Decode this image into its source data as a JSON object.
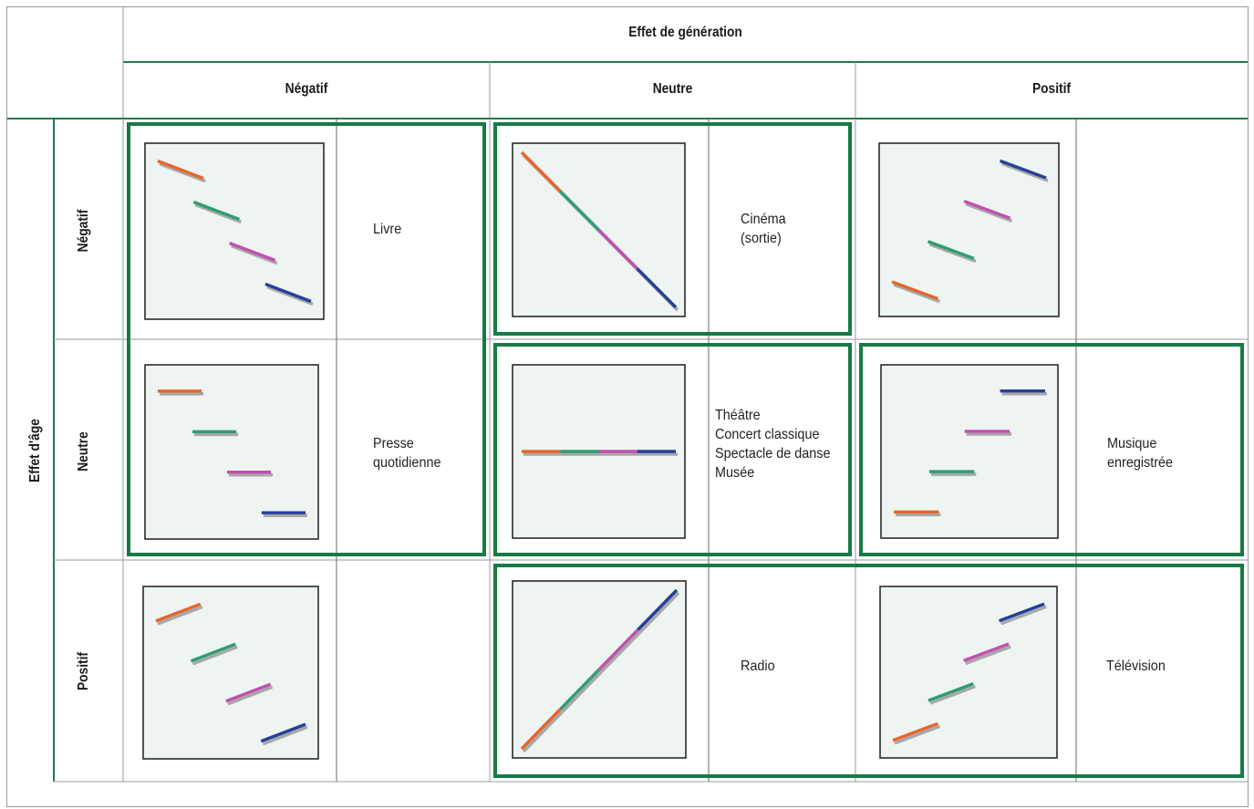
{
  "header": {
    "generation_effect": "Effet de génération",
    "columns": [
      "Négatif",
      "Neutre",
      "Positif"
    ]
  },
  "side": {
    "age_effect": "Effet d'âge",
    "rows": [
      "Négatif",
      "Neutre",
      "Positif"
    ]
  },
  "cells": [
    {
      "row": 0,
      "col": 0,
      "age_slope": "negative",
      "generation_trend": "negative",
      "labels": [
        "Livre"
      ]
    },
    {
      "row": 0,
      "col": 1,
      "age_slope": "negative",
      "generation_trend": "neutral",
      "labels": [
        "Cinéma",
        "(sortie)"
      ]
    },
    {
      "row": 0,
      "col": 2,
      "age_slope": "negative",
      "generation_trend": "positive",
      "labels": []
    },
    {
      "row": 1,
      "col": 0,
      "age_slope": "neutral",
      "generation_trend": "negative",
      "labels": [
        "Presse",
        "quotidienne"
      ]
    },
    {
      "row": 1,
      "col": 1,
      "age_slope": "neutral",
      "generation_trend": "neutral",
      "labels": [
        "Théâtre",
        "Concert classique",
        "Spectacle de danse",
        "Musée"
      ]
    },
    {
      "row": 1,
      "col": 2,
      "age_slope": "neutral",
      "generation_trend": "positive",
      "labels": [
        "Musique",
        "enregistrée"
      ]
    },
    {
      "row": 2,
      "col": 0,
      "age_slope": "positive",
      "generation_trend": "negative",
      "labels": []
    },
    {
      "row": 2,
      "col": 1,
      "age_slope": "positive",
      "generation_trend": "neutral",
      "labels": [
        "Radio"
      ]
    },
    {
      "row": 2,
      "col": 2,
      "age_slope": "positive",
      "generation_trend": "positive",
      "labels": [
        "Télévision"
      ]
    }
  ],
  "cohort_colors": [
    "#e8652a",
    "#2e9e72",
    "#c24fae",
    "#263f9a"
  ],
  "colors": {
    "frame_green": "#1e7a4a",
    "highlight_green": "#177a45",
    "chart_background": "#eef4f1",
    "chart_border": "#2a2a2a",
    "shadow": "#a8a8a8"
  },
  "highlight_groups": [
    {
      "cells": [
        [
          0,
          0
        ],
        [
          1,
          0
        ]
      ]
    },
    {
      "cells": [
        [
          0,
          1
        ]
      ]
    },
    {
      "cells": [
        [
          1,
          1
        ]
      ]
    },
    {
      "cells": [
        [
          1,
          2
        ]
      ]
    },
    {
      "cells": [
        [
          2,
          1
        ],
        [
          2,
          2
        ]
      ]
    }
  ]
}
